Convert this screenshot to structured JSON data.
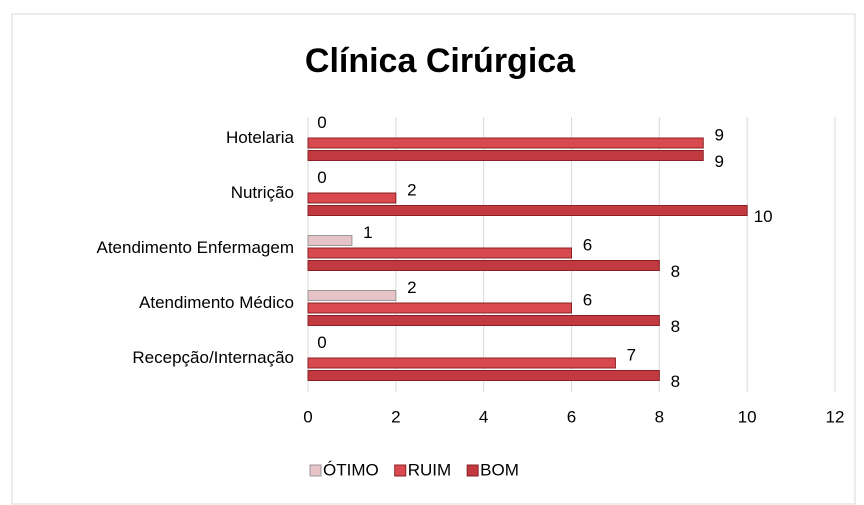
{
  "chart_data": {
    "type": "bar",
    "orientation": "horizontal",
    "title": "Clínica Cirúrgica",
    "categories": [
      "Recepção/Internação",
      "Atendimento Médico",
      "Atendimento Enfermagem",
      "Nutrição",
      "Hotelaria"
    ],
    "series": [
      {
        "name": "ÓTIMO",
        "color": "#e6c3c6",
        "values": [
          0,
          2,
          1,
          0,
          0
        ]
      },
      {
        "name": "RUIM",
        "color": "#d94a50",
        "values": [
          7,
          6,
          6,
          2,
          9
        ]
      },
      {
        "name": "BOM",
        "color": "#c23a40",
        "values": [
          8,
          8,
          8,
          10,
          9
        ]
      }
    ],
    "xlim": [
      0,
      12
    ],
    "xticks": [
      0,
      2,
      4,
      6,
      8,
      10,
      12
    ],
    "grid": true,
    "legend": "bottom"
  }
}
